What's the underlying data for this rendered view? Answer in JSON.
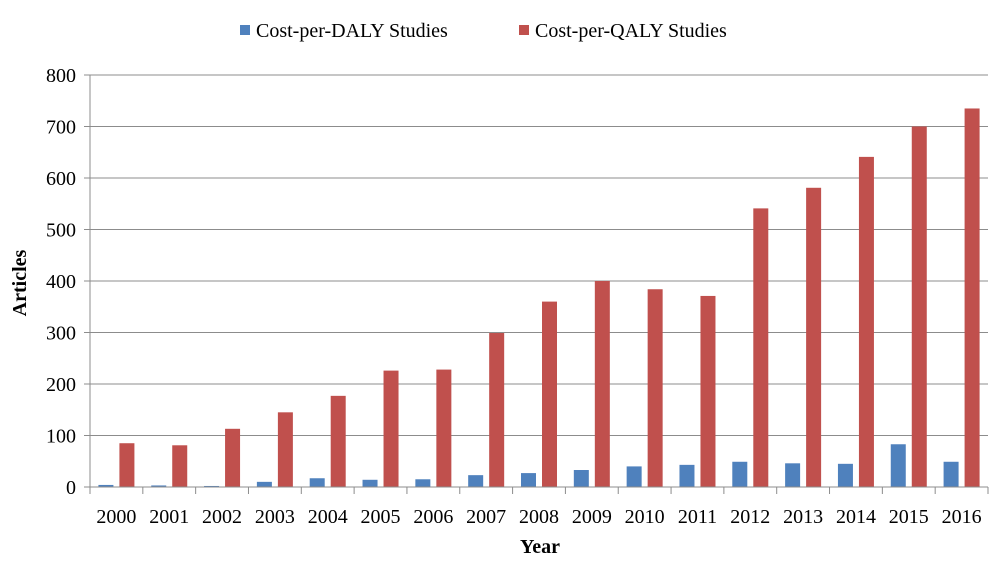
{
  "chart_data": {
    "type": "bar",
    "title": "",
    "xlabel": "Year",
    "ylabel": "Articles",
    "ylim": [
      0,
      800
    ],
    "yticks": [
      0,
      100,
      200,
      300,
      400,
      500,
      600,
      700,
      800
    ],
    "grid": true,
    "legend_position": "top",
    "categories": [
      "2000",
      "2001",
      "2002",
      "2003",
      "2004",
      "2005",
      "2006",
      "2007",
      "2008",
      "2009",
      "2010",
      "2011",
      "2012",
      "2013",
      "2014",
      "2015",
      "2016"
    ],
    "series": [
      {
        "name": "Cost-per-DALY Studies",
        "color": "#4F81BD",
        "values": [
          4,
          3,
          2,
          10,
          17,
          14,
          15,
          23,
          27,
          33,
          40,
          43,
          49,
          46,
          45,
          83,
          49
        ]
      },
      {
        "name": "Cost-per-QALY Studies",
        "color": "#C0504D",
        "values": [
          85,
          81,
          113,
          145,
          177,
          226,
          228,
          299,
          360,
          400,
          384,
          371,
          541,
          581,
          641,
          700,
          735
        ]
      }
    ]
  }
}
